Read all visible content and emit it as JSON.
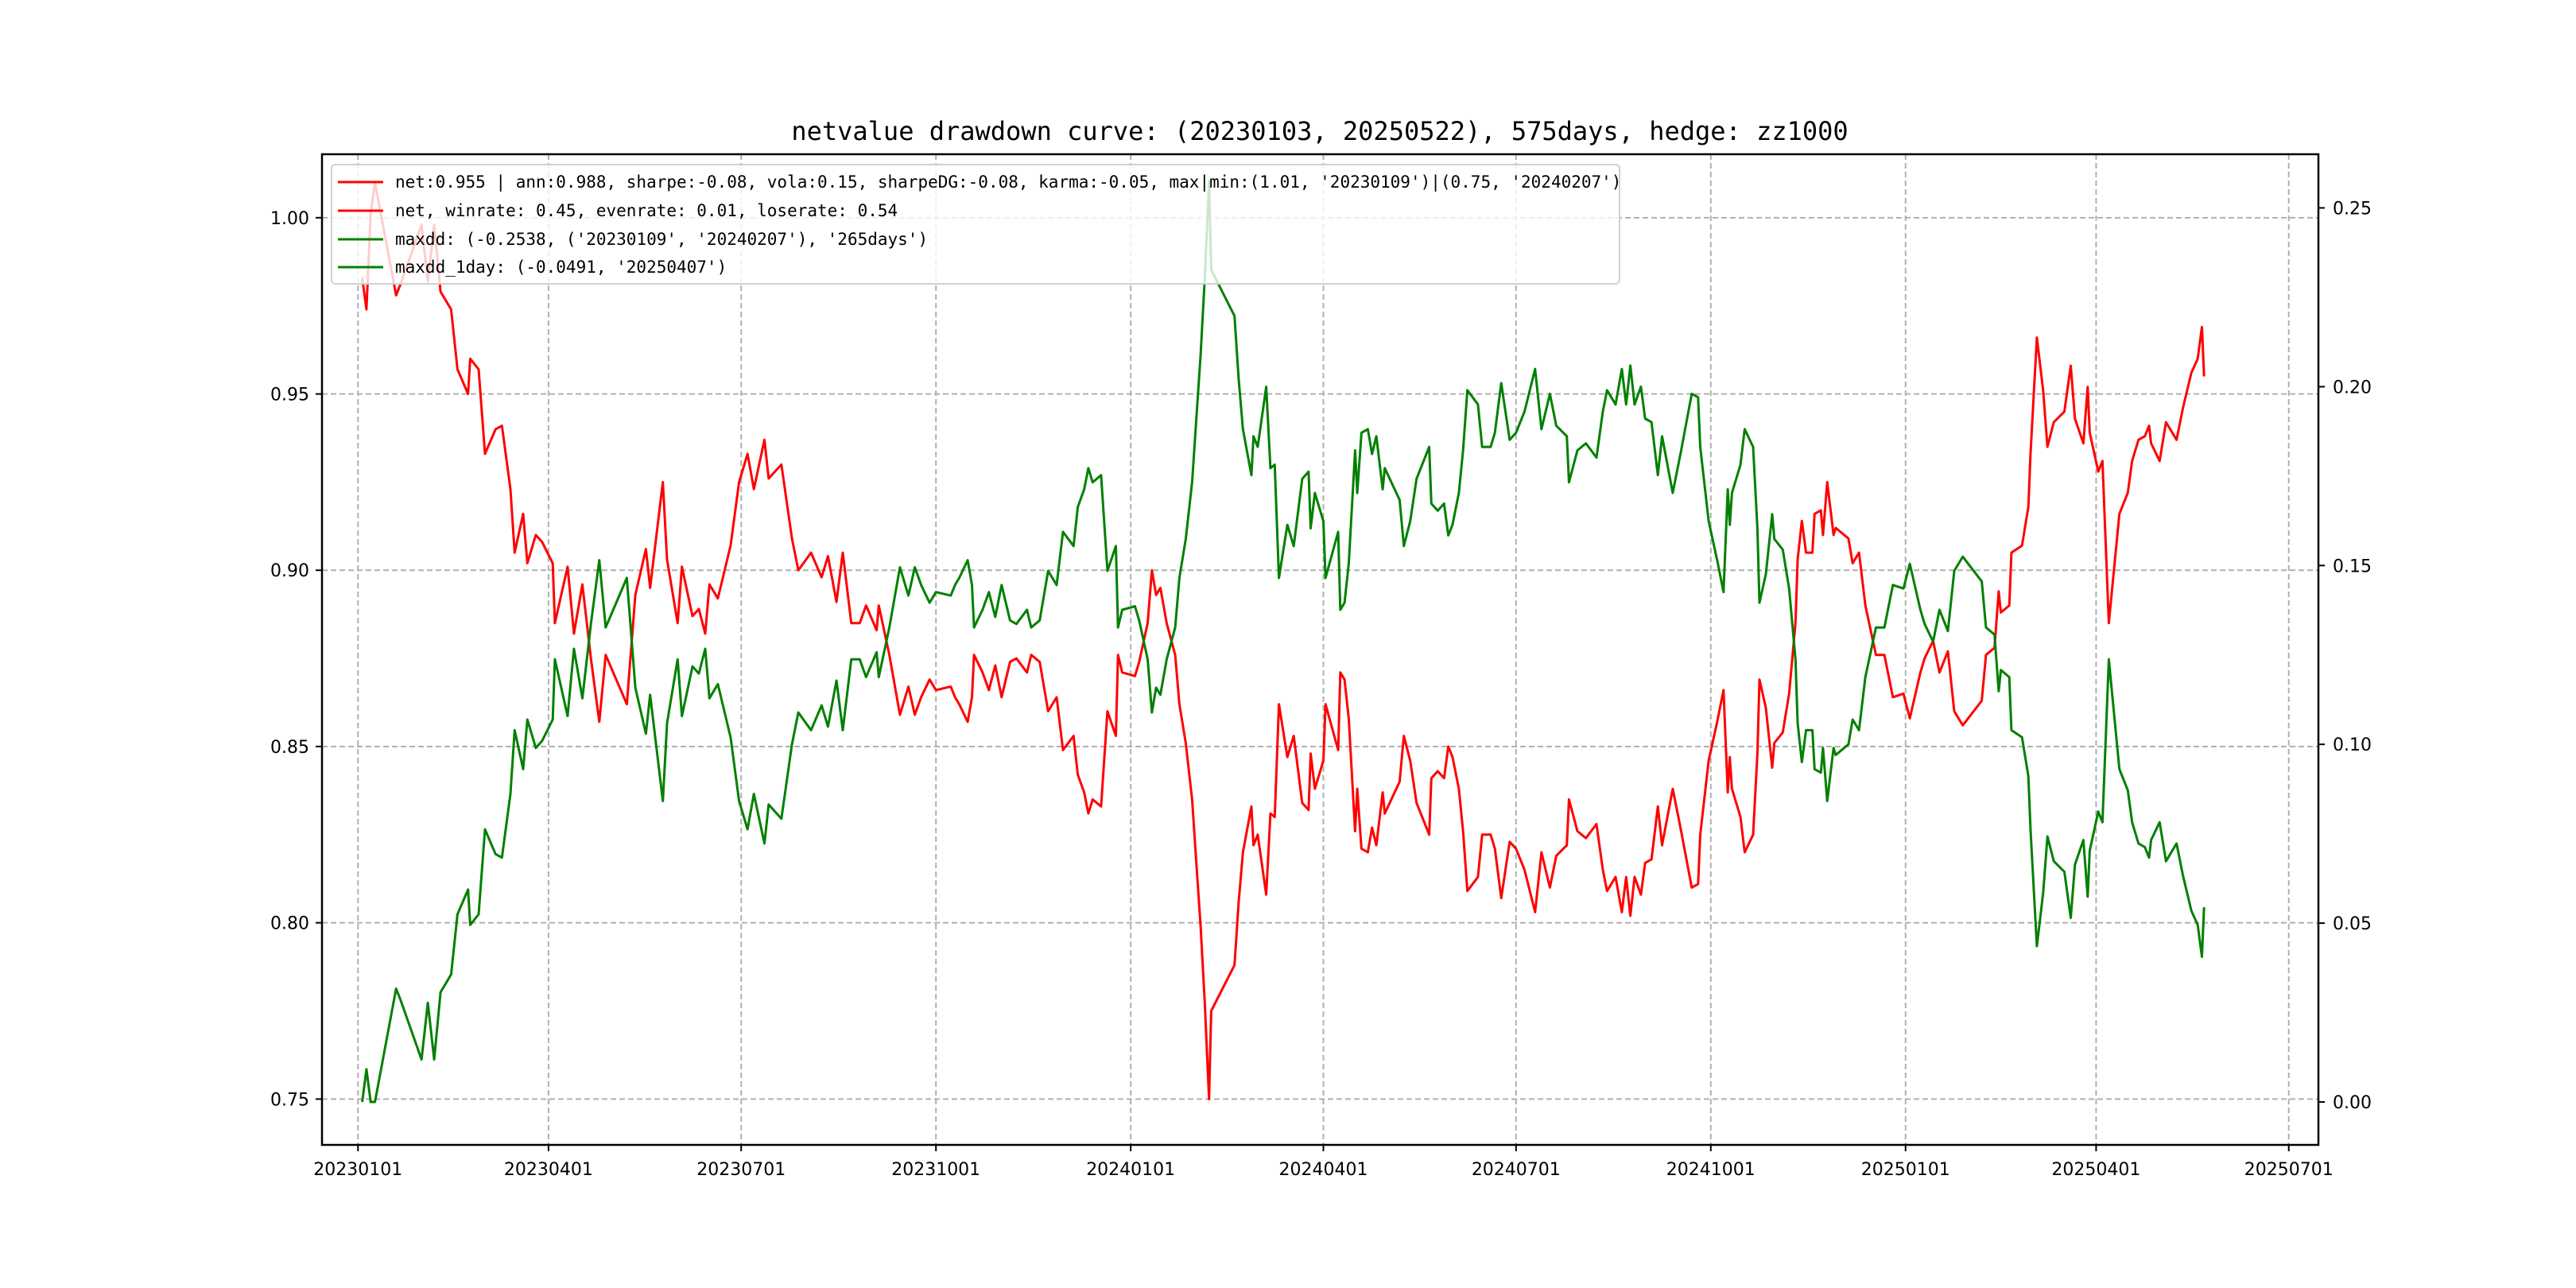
{
  "chart_data": {
    "type": "line",
    "title": "netvalue drawdown curve: (20230103, 20250522), 575days, hedge: zz1000",
    "xlabel": "",
    "ylabel_left": "",
    "ylabel_right": "",
    "x_ticks": [
      "20230101",
      "20230401",
      "20230701",
      "20231001",
      "20240101",
      "20240401",
      "20240701",
      "20241001",
      "20250101",
      "20250401",
      "20250701"
    ],
    "xlim": [
      "20221215",
      "20250715"
    ],
    "y_left_ticks": [
      "0.75",
      "0.80",
      "0.85",
      "0.90",
      "0.95",
      "1.00"
    ],
    "ylim_left": [
      0.737,
      1.018
    ],
    "y_right_ticks": [
      "0.00",
      "0.05",
      "0.10",
      "0.15",
      "0.20",
      "0.25"
    ],
    "ylim_right": [
      -0.012,
      0.265
    ],
    "grid": true,
    "legend_placement": "top-left",
    "legend": [
      {
        "label": "net:0.955 | ann:0.988, sharpe:-0.08, vola:0.15, sharpeDG:-0.08, karma:-0.05, max|min:(1.01, '20230109')|(0.75, '20240207')",
        "color": "#ff0000"
      },
      {
        "label": "net, winrate: 0.45, evenrate: 0.01, loserate: 0.54",
        "color": "#ff0000"
      },
      {
        "label": "maxdd: (-0.2538, ('20230109', '20240207'), '265days')",
        "color": "#008000"
      },
      {
        "label": "maxdd_1day: (-0.0491, '20250407')",
        "color": "#008000"
      }
    ],
    "series": [
      {
        "name": "net",
        "axis": "left",
        "color": "#ff0000",
        "x": [
          "20230103",
          "20230105",
          "20230107",
          "20230109",
          "20230119",
          "20230121",
          "20230131",
          "20230203",
          "20230206",
          "20230209",
          "20230214",
          "20230217",
          "20230222",
          "20230223",
          "20230227",
          "20230302",
          "20230307",
          "20230310",
          "20230314",
          "20230316",
          "20230320",
          "20230322",
          "20230326",
          "20230329",
          "20230403",
          "20230404",
          "20230410",
          "20230413",
          "20230417",
          "20230421",
          "20230425",
          "20230428",
          "20230508",
          "20230512",
          "20230517",
          "20230519",
          "20230525",
          "20230527",
          "20230601",
          "20230603",
          "20230608",
          "20230611",
          "20230614",
          "20230616",
          "20230620",
          "20230626",
          "20230630",
          "20230704",
          "20230707",
          "20230712",
          "20230714",
          "20230720",
          "20230725",
          "20230728",
          "20230803",
          "20230808",
          "20230811",
          "20230815",
          "20230818",
          "20230822",
          "20230826",
          "20230829",
          "20230903",
          "20230904",
          "20230909",
          "20230914",
          "20230918",
          "20230921",
          "20230924",
          "20230928",
          "20231001",
          "20231008",
          "20231010",
          "20231012",
          "20231016",
          "20231018",
          "20231019",
          "20231023",
          "20231026",
          "20231029",
          "20231101",
          "20231105",
          "20231108",
          "20231113",
          "20231115",
          "20231119",
          "20231123",
          "20231127",
          "20231130",
          "20231205",
          "20231207",
          "20231210",
          "20231212",
          "20231214",
          "20231218",
          "20231221",
          "20231225",
          "20231226",
          "20231228",
          "20240103",
          "20240105",
          "20240109",
          "20240111",
          "20240113",
          "20240115",
          "20240118",
          "20240122",
          "20240124",
          "20240127",
          "20240130",
          "20240201",
          "20240203",
          "20240205",
          "20240207",
          "20240208",
          "20240219",
          "20240221",
          "20240223",
          "20240227",
          "20240228",
          "20240301",
          "20240305",
          "20240307",
          "20240309",
          "20240311",
          "20240315",
          "20240318",
          "20240322",
          "20240325",
          "20240326",
          "20240328",
          "20240401",
          "20240402",
          "20240408",
          "20240409",
          "20240411",
          "20240413",
          "20240416",
          "20240417",
          "20240419",
          "20240422",
          "20240424",
          "20240426",
          "20240429",
          "20240430",
          "20240507",
          "20240509",
          "20240512",
          "20240515",
          "20240521",
          "20240522",
          "20240525",
          "20240528",
          "20240530",
          "20240601",
          "20240604",
          "20240606",
          "20240608",
          "20240613",
          "20240615",
          "20240619",
          "20240621",
          "20240624",
          "20240628",
          "20240701",
          "20240705",
          "20240710",
          "20240713",
          "20240717",
          "20240720",
          "20240725",
          "20240726",
          "20240730",
          "20240803",
          "20240808",
          "20240811",
          "20240813",
          "20240817",
          "20240820",
          "20240822",
          "20240824",
          "20240826",
          "20240829",
          "20240831",
          "20240903",
          "20240906",
          "20240908",
          "20240913",
          "20240917",
          "20240922",
          "20240925",
          "20240926",
          "20240930",
          "20241004",
          "20241007",
          "20241009",
          "20241010",
          "20241011",
          "20241015",
          "20241017",
          "20241021",
          "20241023",
          "20241024",
          "20241027",
          "20241030",
          "20241031",
          "20241104",
          "20241107",
          "20241110",
          "20241111",
          "20241113",
          "20241115",
          "20241118",
          "20241119",
          "20241122",
          "20241123",
          "20241125",
          "20241128",
          "20241129",
          "20241205",
          "20241207",
          "20241210",
          "20241213",
          "20241218",
          "20241222",
          "20241226",
          "20241231",
          "20250103",
          "20250108",
          "20250110",
          "20250114",
          "20250117",
          "20250121",
          "20250124",
          "20250128",
          "20250206",
          "20250208",
          "20250212",
          "20250214",
          "20250215",
          "20250219",
          "20250220",
          "20250225",
          "20250228",
          "20250301",
          "20250304",
          "20250307",
          "20250309",
          "20250312",
          "20250317",
          "20250320",
          "20250322",
          "20250326",
          "20250328",
          "20250329",
          "20250402",
          "20250404",
          "20250407",
          "20250412",
          "20250416",
          "20250418",
          "20250421",
          "20250424",
          "20250426",
          "20250427",
          "20250501",
          "20250504",
          "20250509",
          "20250512",
          "20250516",
          "20250519",
          "20250521",
          "20250522"
        ],
        "y": [
          0.983,
          0.974,
          1.001,
          1.01,
          0.978,
          0.981,
          0.998,
          0.982,
          0.998,
          0.979,
          0.974,
          0.957,
          0.95,
          0.96,
          0.957,
          0.933,
          0.94,
          0.941,
          0.923,
          0.905,
          0.916,
          0.902,
          0.91,
          0.908,
          0.902,
          0.885,
          0.901,
          0.882,
          0.896,
          0.875,
          0.857,
          0.876,
          0.862,
          0.893,
          0.906,
          0.895,
          0.925,
          0.903,
          0.885,
          0.901,
          0.887,
          0.889,
          0.882,
          0.896,
          0.892,
          0.907,
          0.925,
          0.933,
          0.923,
          0.937,
          0.926,
          0.93,
          0.909,
          0.9,
          0.905,
          0.898,
          0.904,
          0.891,
          0.905,
          0.885,
          0.885,
          0.89,
          0.883,
          0.89,
          0.876,
          0.859,
          0.867,
          0.859,
          0.864,
          0.869,
          0.866,
          0.867,
          0.864,
          0.862,
          0.857,
          0.864,
          0.876,
          0.871,
          0.866,
          0.873,
          0.864,
          0.874,
          0.875,
          0.871,
          0.876,
          0.874,
          0.86,
          0.864,
          0.849,
          0.853,
          0.842,
          0.837,
          0.831,
          0.835,
          0.833,
          0.86,
          0.853,
          0.876,
          0.871,
          0.87,
          0.874,
          0.885,
          0.9,
          0.893,
          0.895,
          0.885,
          0.876,
          0.862,
          0.851,
          0.835,
          0.817,
          0.799,
          0.777,
          0.75,
          0.775,
          0.788,
          0.806,
          0.82,
          0.833,
          0.822,
          0.825,
          0.808,
          0.831,
          0.83,
          0.862,
          0.847,
          0.853,
          0.834,
          0.832,
          0.848,
          0.838,
          0.846,
          0.862,
          0.849,
          0.871,
          0.869,
          0.858,
          0.826,
          0.838,
          0.821,
          0.82,
          0.827,
          0.822,
          0.837,
          0.831,
          0.84,
          0.853,
          0.846,
          0.834,
          0.825,
          0.841,
          0.843,
          0.841,
          0.85,
          0.847,
          0.838,
          0.826,
          0.809,
          0.813,
          0.825,
          0.825,
          0.821,
          0.807,
          0.823,
          0.821,
          0.815,
          0.803,
          0.82,
          0.81,
          0.819,
          0.822,
          0.835,
          0.826,
          0.824,
          0.828,
          0.815,
          0.809,
          0.813,
          0.803,
          0.813,
          0.802,
          0.813,
          0.808,
          0.817,
          0.818,
          0.833,
          0.822,
          0.838,
          0.826,
          0.81,
          0.811,
          0.825,
          0.846,
          0.857,
          0.866,
          0.837,
          0.847,
          0.838,
          0.83,
          0.82,
          0.825,
          0.848,
          0.869,
          0.861,
          0.844,
          0.851,
          0.854,
          0.865,
          0.885,
          0.903,
          0.914,
          0.905,
          0.905,
          0.916,
          0.917,
          0.91,
          0.925,
          0.91,
          0.912,
          0.909,
          0.902,
          0.905,
          0.89,
          0.876,
          0.876,
          0.864,
          0.865,
          0.858,
          0.871,
          0.875,
          0.88,
          0.871,
          0.877,
          0.86,
          0.856,
          0.863,
          0.876,
          0.878,
          0.894,
          0.888,
          0.89,
          0.905,
          0.907,
          0.918,
          0.933,
          0.966,
          0.951,
          0.935,
          0.942,
          0.945,
          0.958,
          0.943,
          0.936,
          0.952,
          0.939,
          0.928,
          0.931,
          0.885,
          0.916,
          0.922,
          0.931,
          0.937,
          0.938,
          0.941,
          0.936,
          0.931,
          0.942,
          0.937,
          0.946,
          0.956,
          0.96,
          0.969,
          0.955
        ]
      },
      {
        "name": "maxdd",
        "axis": "right",
        "color": "#008000",
        "derived_from": "net",
        "formula": "1 - net / running_max(net)"
      }
    ]
  }
}
